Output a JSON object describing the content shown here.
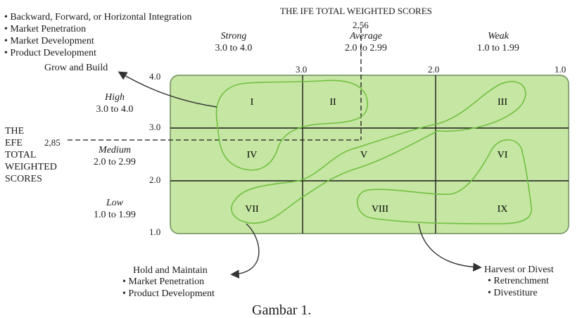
{
  "strategies_top": {
    "items": [
      "Backward, Forward, or Horizontal Integration",
      "Market Penetration",
      "Market Development",
      "Product Development"
    ],
    "label": "Grow and Build"
  },
  "x_axis": {
    "title": "THE IFE TOTAL WEIGHTED SCORES",
    "columns": [
      {
        "name": "Strong",
        "range": "3.0 to 4.0"
      },
      {
        "name": "Average",
        "range": "2.0 to 2.99"
      },
      {
        "name": "Weak",
        "range": "1.0 to 1.99"
      }
    ],
    "ticks": [
      "3.0",
      "2.0",
      "1.0"
    ],
    "marker": "2,56"
  },
  "y_axis": {
    "title_lines": [
      "THE",
      "EFE",
      "TOTAL",
      "WEIGHTED",
      "SCORES"
    ],
    "rows": [
      {
        "name": "High",
        "range": "3.0 to 4.0"
      },
      {
        "name": "Medium",
        "range": "2.0 to 2.99"
      },
      {
        "name": "Low",
        "range": "1.0 to 1.99"
      }
    ],
    "ticks": [
      "4.0",
      "3.0",
      "2.0",
      "1.0"
    ],
    "marker": "2,85"
  },
  "cells": [
    "I",
    "II",
    "III",
    "IV",
    "V",
    "VI",
    "VII",
    "VIII",
    "IX"
  ],
  "strategies_hold": {
    "label": "Hold and Maintain",
    "items": [
      "Market Penetration",
      "Product Development"
    ]
  },
  "strategies_harvest": {
    "label": "Harvest or Divest",
    "items": [
      "Retrenchment",
      "Divestiture"
    ]
  },
  "caption": "Gambar 1.",
  "colors": {
    "matrix_fill": "#c6e6a4",
    "matrix_border": "#6d8c5a",
    "grid_line": "#1a1a1a",
    "region_line": "#6fc13d",
    "arrow": "#333333"
  }
}
